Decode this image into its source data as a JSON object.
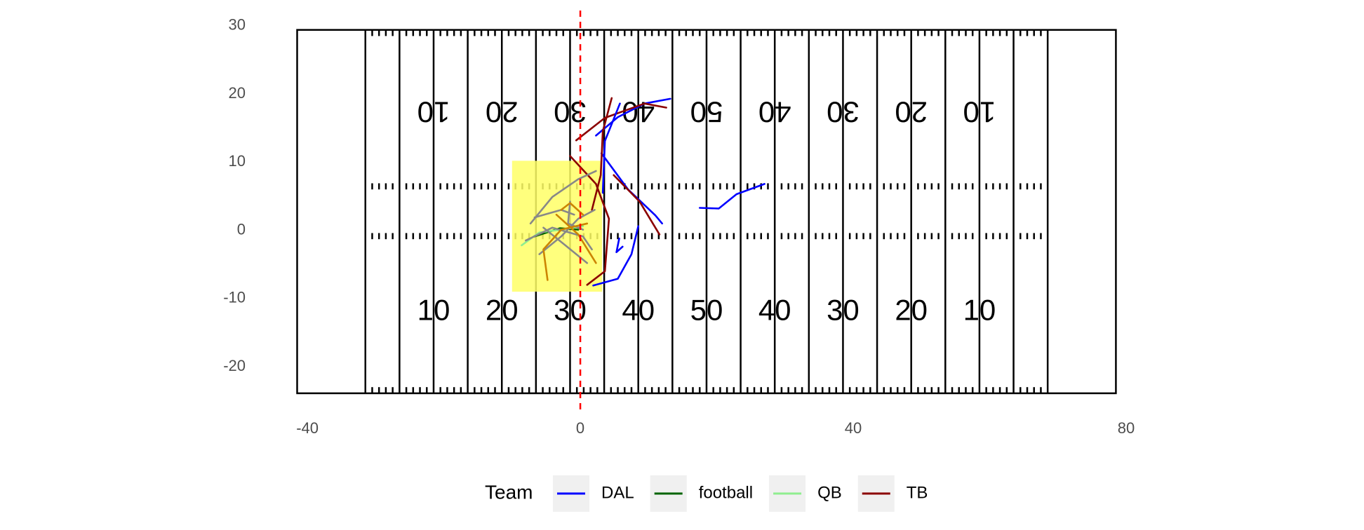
{
  "chart_data": {
    "type": "line",
    "xlim": [
      -41.5,
      80
    ],
    "ylim": [
      -23.8,
      30
    ],
    "xticks": [
      -40,
      0,
      40,
      80
    ],
    "yticks": [
      -20,
      -10,
      0,
      10,
      20,
      30
    ],
    "field_numbers": [
      "10",
      "20",
      "30",
      "40",
      "50",
      "40",
      "30",
      "20",
      "10"
    ],
    "vline": 0,
    "vline_color": "#ff0000",
    "highlight_box": {
      "x": [
        -10,
        3.2
      ],
      "y": [
        -9,
        10.2
      ],
      "color": "#ffff66"
    },
    "legend_title": "Team",
    "series": [
      {
        "name": "DAL",
        "color": "#0000ff",
        "x": [
          2.3,
          5.5,
          9.4,
          13.2
        ],
        "values": [
          13.9,
          16.6,
          18.6,
          19.3
        ]
      },
      {
        "name": "football",
        "color": "#006400",
        "x": [
          -6.7,
          -3,
          -0.3
        ],
        "values": [
          -0.9,
          0.3,
          0.1
        ]
      },
      {
        "name": "QB",
        "color": "#90ee90",
        "x": [
          -8.6,
          -6,
          -2.8,
          0.4
        ],
        "values": [
          -2.2,
          -0.3,
          0.1,
          0.6
        ]
      },
      {
        "name": "TB",
        "color": "#8b0000",
        "x": [
          -0.6,
          3.6,
          9.4,
          12.6
        ],
        "values": [
          13.2,
          16.5,
          18.6,
          18
        ]
      },
      {
        "name": "DAL",
        "color": "#0000ff",
        "x": [
          5.8,
          3.6,
          3.3
        ],
        "values": [
          18.6,
          13.1,
          5.5
        ]
      },
      {
        "name": "DAL",
        "color": "#0000ff",
        "x": [
          3.1,
          7,
          11,
          12
        ],
        "values": [
          11.3,
          6,
          2.2,
          1
        ]
      },
      {
        "name": "DAL",
        "color": "#0000ff",
        "x": [
          17.5,
          20.3,
          22.9,
          27
        ],
        "values": [
          3.3,
          3.2,
          5.3,
          6.8
        ]
      },
      {
        "name": "DAL",
        "color": "#0000ff",
        "x": [
          1.9,
          5.5,
          7.5,
          8.5
        ],
        "values": [
          -8.1,
          -7.1,
          -3.5,
          0.6
        ]
      },
      {
        "name": "DAL",
        "color": "#0000ff",
        "x": [
          5.7,
          5.3,
          6.2
        ],
        "values": [
          -1.2,
          -3.2,
          -2.4
        ]
      },
      {
        "name": "TB",
        "color": "#8b0000",
        "x": [
          4.6,
          3.3,
          3,
          1.7
        ],
        "values": [
          19.4,
          14.5,
          8.1,
          3
        ]
      },
      {
        "name": "TB",
        "color": "#8b0000",
        "x": [
          -1.5,
          2.3,
          4.2,
          3.6,
          1
        ],
        "values": [
          10.9,
          6.8,
          1.7,
          -6,
          -8
        ]
      },
      {
        "name": "TB",
        "color": "#8b0000",
        "x": [
          4.9,
          8.7,
          11.6
        ],
        "values": [
          8.1,
          4.2,
          -0.6
        ]
      },
      {
        "color": "#888888",
        "x": [
          -7.3,
          -4.1,
          -0.3,
          2.3
        ],
        "values": [
          1,
          4.9,
          7.5,
          8.7
        ]
      },
      {
        "color": "#888888",
        "x": [
          -8,
          -4.1,
          0.4,
          1.7
        ],
        "values": [
          -1.5,
          0.4,
          -0.9,
          -2.8
        ]
      },
      {
        "color": "#888888",
        "x": [
          -6,
          -2.8,
          -0.3,
          2.1
        ],
        "values": [
          -3.5,
          -0.9,
          1.7,
          3
        ]
      },
      {
        "color": "#888888",
        "x": [
          -5.4,
          -2.2,
          1
        ],
        "values": [
          0.4,
          -2.2,
          -4.8
        ]
      },
      {
        "color": "#888888",
        "x": [
          -1.5,
          -1.8,
          0.4
        ],
        "values": [
          4.2,
          1,
          0.1
        ]
      },
      {
        "color": "#888888",
        "x": [
          -6.7,
          -2.8,
          -0.9
        ],
        "values": [
          1.9,
          3,
          2.3
        ]
      },
      {
        "color": "#cc8400",
        "x": [
          -4.8,
          -5.4,
          -2.8,
          1
        ],
        "values": [
          -7.3,
          -2.8,
          0.1,
          1
        ]
      },
      {
        "color": "#cc8400",
        "x": [
          -3.5,
          -0.3,
          2.3
        ],
        "values": [
          2.3,
          -0.6,
          -4.8
        ]
      },
      {
        "color": "#cc8400",
        "x": [
          -2.8,
          -1.5,
          0.4
        ],
        "values": [
          3,
          4,
          2.3
        ]
      }
    ]
  }
}
